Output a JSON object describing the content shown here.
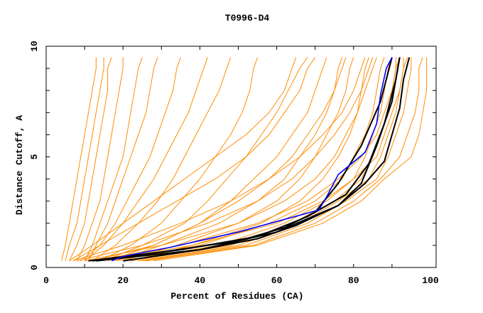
{
  "chart_data": {
    "type": "line",
    "title": "T0996-D4",
    "xlabel": "Percent of Residues (CA)",
    "ylabel": "Distance Cutoff, A",
    "xlim": [
      0,
      100
    ],
    "ylim": [
      0,
      10
    ],
    "xticks": [
      "0",
      "20",
      "40",
      "60",
      "80",
      "100"
    ],
    "yticks": [
      "0",
      "5",
      "10"
    ],
    "grid": false,
    "colors": {
      "other_models": "#ff8c00",
      "highlight_blue": "#0000ff",
      "highlight_black": "#000000"
    },
    "y_cutoffs": [
      0.3,
      1,
      2,
      3,
      4,
      5,
      6,
      7,
      8,
      9,
      9.5
    ],
    "orange_series": [
      [
        4,
        5,
        6,
        7,
        8,
        9,
        10,
        11,
        12,
        13,
        13
      ],
      [
        5,
        6,
        8,
        9,
        10,
        11,
        12,
        13,
        14,
        15,
        15
      ],
      [
        6,
        8,
        10,
        11,
        12,
        13,
        14,
        15,
        16,
        16,
        17
      ],
      [
        8,
        10,
        12,
        14,
        15,
        16,
        17,
        18,
        19,
        20,
        20
      ],
      [
        10,
        12,
        14,
        16,
        18,
        20,
        21,
        22,
        23,
        24,
        25
      ],
      [
        11,
        13,
        16,
        18,
        20,
        22,
        24,
        26,
        27,
        28,
        29
      ],
      [
        9,
        14,
        18,
        21,
        24,
        27,
        29,
        31,
        33,
        34,
        35
      ],
      [
        10,
        15,
        20,
        24,
        28,
        31,
        34,
        37,
        39,
        41,
        42
      ],
      [
        12,
        18,
        24,
        29,
        33,
        36,
        39,
        42,
        45,
        47,
        48
      ],
      [
        14,
        22,
        30,
        35,
        40,
        44,
        48,
        51,
        53,
        54,
        55
      ],
      [
        15,
        25,
        36,
        42,
        47,
        52,
        56,
        60,
        63,
        66,
        68
      ],
      [
        16,
        28,
        40,
        48,
        54,
        60,
        64,
        68,
        70,
        72,
        73
      ],
      [
        18,
        30,
        45,
        55,
        62,
        66,
        70,
        73,
        75,
        76,
        77
      ],
      [
        20,
        34,
        50,
        60,
        66,
        70,
        73,
        76,
        78,
        79,
        80
      ],
      [
        22,
        38,
        56,
        66,
        72,
        76,
        79,
        81,
        82,
        83,
        84
      ],
      [
        18,
        40,
        58,
        70,
        77,
        80,
        83,
        85,
        86,
        87,
        88
      ],
      [
        20,
        45,
        62,
        73,
        80,
        83,
        85,
        87,
        88,
        89,
        90
      ],
      [
        22,
        48,
        64,
        75,
        82,
        85,
        87,
        89,
        90,
        91,
        91
      ],
      [
        24,
        50,
        66,
        76,
        84,
        87,
        89,
        91,
        92,
        93,
        93
      ],
      [
        25,
        52,
        68,
        78,
        86,
        89,
        91,
        93,
        94,
        95,
        95
      ],
      [
        26,
        54,
        70,
        80,
        87,
        92,
        94,
        96,
        97,
        97,
        98
      ],
      [
        28,
        55,
        72,
        82,
        88,
        95,
        97,
        98,
        99,
        99,
        99
      ],
      [
        12,
        35,
        55,
        68,
        76,
        82,
        86,
        88,
        90,
        91,
        92
      ],
      [
        14,
        38,
        60,
        72,
        80,
        86,
        88,
        90,
        92,
        93,
        94
      ],
      [
        10,
        30,
        50,
        62,
        70,
        75,
        78,
        81,
        83,
        85,
        86
      ],
      [
        8,
        25,
        42,
        55,
        64,
        70,
        75,
        79,
        82,
        84,
        85
      ],
      [
        7,
        20,
        35,
        48,
        58,
        66,
        72,
        77,
        80,
        82,
        83
      ],
      [
        12,
        28,
        40,
        50,
        58,
        64,
        68,
        72,
        75,
        77,
        78
      ],
      [
        6,
        12,
        20,
        28,
        36,
        44,
        52,
        58,
        62,
        64,
        65
      ],
      [
        7,
        14,
        24,
        34,
        44,
        52,
        58,
        62,
        66,
        68,
        70
      ]
    ],
    "blue_series": [
      [
        17,
        0.3
      ],
      [
        20,
        0.5
      ],
      [
        32,
        0.9
      ],
      [
        50,
        1.6
      ],
      [
        71,
        2.6
      ],
      [
        73,
        3.2
      ],
      [
        76,
        4.2
      ],
      [
        83,
        5.2
      ],
      [
        86,
        6.5
      ],
      [
        87,
        7.8
      ],
      [
        88.5,
        9.0
      ],
      [
        90,
        9.5
      ]
    ],
    "black_series": [
      [
        [
          11,
          0.3
        ],
        [
          30,
          0.7
        ],
        [
          50,
          1.2
        ],
        [
          62,
          1.8
        ],
        [
          70,
          2.5
        ],
        [
          76,
          3.8
        ],
        [
          82,
          5.5
        ],
        [
          87,
          7.5
        ],
        [
          90,
          9.5
        ]
      ],
      [
        [
          20,
          0.3
        ],
        [
          40,
          0.8
        ],
        [
          55,
          1.3
        ],
        [
          65,
          1.9
        ],
        [
          76,
          2.8
        ],
        [
          82,
          3.8
        ],
        [
          86,
          5.5
        ],
        [
          90,
          7.5
        ],
        [
          92,
          9.5
        ]
      ],
      [
        [
          12,
          0.3
        ],
        [
          35,
          0.8
        ],
        [
          55,
          1.4
        ],
        [
          68,
          2.3
        ],
        [
          78,
          3.3
        ],
        [
          84,
          4.7
        ],
        [
          88,
          6.5
        ],
        [
          91,
          8.5
        ],
        [
          92,
          9.5
        ]
      ],
      [
        [
          13,
          0.3
        ],
        [
          40,
          0.8
        ],
        [
          60,
          1.6
        ],
        [
          76,
          2.8
        ],
        [
          83,
          3.8
        ],
        [
          88,
          4.8
        ],
        [
          90,
          6
        ],
        [
          92,
          7.2
        ],
        [
          93,
          8.5
        ],
        [
          94.5,
          9.5
        ]
      ]
    ]
  }
}
